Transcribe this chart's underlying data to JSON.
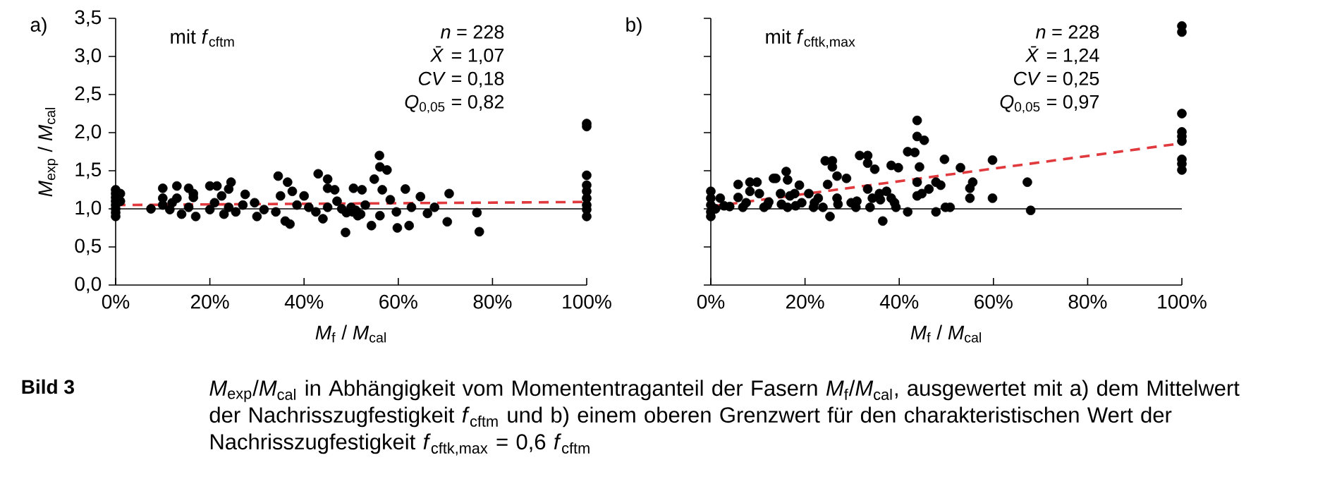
{
  "chart_data": [
    {
      "type": "scatter",
      "title": "a)",
      "subtitle": "mit *f*$_{cftm}$",
      "xlabel": "*M*$_{f}$ / *M*$_{cal}$",
      "ylabel": "*M*$_{exp}$ / *M*$_{cal}$",
      "annotations": [
        "*n* =  228",
        "*X̄* = 1,07",
        "*CV* = 0,18",
        "*Q*$_{0,05}$ = 0,82",
        "Bild 3",
        "*M*$_{exp}$/*M*$_{cal}$ in Abhängigkeit vom Momententraganteil der Fasern *M*$_{f}$/*M*$_{cal}$, ausgewertet mit a) dem Mittelwert der Nachrisszugfestigkeit *f*$_{cftm}$ und b) einem oberen Grenzwert für den charakteristischen Wert der Nachrisszugfestigkeit *f*$_{cftk,max}$ = 0,6 *f*$_{cftm}$"
      ],
      "xlim": [
        0,
        100
      ],
      "ylim": [
        0,
        3.5
      ],
      "xticks": [
        {
          "value": 0,
          "label": "0%"
        },
        {
          "value": 20,
          "label": "20%"
        },
        {
          "value": 40,
          "label": "40%"
        },
        {
          "value": 60,
          "label": "60%"
        },
        {
          "value": 80,
          "label": "80%"
        },
        {
          "value": 100,
          "label": "100%"
        }
      ],
      "yticks": [
        {
          "value": 0,
          "label": "0,0"
        },
        {
          "value": 0.5,
          "label": "0,5"
        },
        {
          "value": 1,
          "label": "1,0"
        },
        {
          "value": 1.5,
          "label": "1,5"
        },
        {
          "value": 2,
          "label": "2,0"
        },
        {
          "value": 2.5,
          "label": "2,5"
        },
        {
          "value": 3,
          "label": "3,0"
        },
        {
          "value": 3.5,
          "label": "3,5"
        }
      ],
      "ref_lines": [
        {
          "axis": "y",
          "value": 1,
          "color": "#000000"
        }
      ],
      "series": [
        {
          "color": "#000000",
          "x": [
            0,
            0,
            0,
            0,
            0,
            0,
            0,
            0,
            1,
            1,
            7.5,
            10,
            10,
            10,
            13,
            13,
            14,
            15.5,
            16.5,
            16.5,
            17,
            15.5,
            12,
            11.5,
            20,
            21.5,
            24.5,
            24,
            22.5,
            20,
            21,
            23,
            24,
            25.5,
            27.5,
            27,
            29.5,
            30,
            31.5,
            34,
            34.5,
            36.5,
            35,
            36,
            37,
            38.5,
            37.5,
            40,
            41,
            42.5,
            43,
            44,
            45,
            45,
            45,
            46.5,
            48.8,
            50.3,
            50.5,
            52.3,
            51.4,
            54.3,
            54.9,
            56,
            56.1,
            57.6,
            56.6,
            56.1,
            58.3,
            59.6,
            59.8,
            62.3,
            61.5,
            62.8,
            64.7,
            66.2,
            67.7,
            70.4,
            70.8,
            76.7,
            77.2,
            48,
            49,
            50,
            51,
            52,
            53,
            47,
            100,
            100,
            100,
            100,
            100,
            100,
            100,
            100,
            100
          ],
          "values": [
            1.25,
            1.2,
            1.15,
            1.1,
            1.05,
            1.0,
            0.95,
            0.9,
            1.2,
            1.1,
            1.0,
            1.27,
            1.14,
            1.05,
            1.3,
            1.14,
            0.93,
            1.27,
            1.15,
            1.2,
            0.9,
            1.02,
            1.08,
            0.99,
            1.3,
            1.3,
            1.35,
            1.26,
            1.17,
            0.99,
            1.08,
            0.93,
            1.02,
            0.96,
            1.19,
            1.05,
            1.08,
            0.9,
            0.99,
            0.96,
            1.43,
            1.35,
            1.17,
            0.84,
            0.8,
            1.05,
            1.23,
            1.17,
            1.02,
            0.96,
            1.46,
            0.87,
            1.02,
            1.39,
            1.27,
            1.25,
            0.69,
            0.96,
            1.27,
            1.25,
            0.91,
            0.78,
            1.39,
            1.7,
            1.55,
            1.51,
            1.25,
            0.91,
            1.12,
            0.96,
            0.75,
            0.78,
            1.26,
            1.02,
            1.16,
            0.94,
            1.02,
            0.83,
            1.2,
            0.95,
            0.7,
            1.0,
            0.95,
            1.02,
            0.98,
            0.93,
            1.05,
            1.1,
            2.12,
            2.08,
            1.44,
            1.31,
            1.23,
            1.14,
            1.05,
            0.99,
            0.9
          ]
        },
        {
          "type": "line",
          "color": "#e0393e",
          "line_style": "dashed",
          "x": [
            0,
            100
          ],
          "values": [
            1.05,
            1.09
          ]
        }
      ]
    },
    {
      "type": "scatter",
      "title": "b)",
      "subtitle": "mit *f*$_{cftk,max}$",
      "xlabel": "*M*$_{f}$ / *M*$_{cal}$",
      "annotations": [
        "*n* =  228",
        "*X̄* = 1,24",
        "*CV* = 0,25",
        "*Q*$_{0,05}$ = 0,97"
      ],
      "xlim": [
        0,
        100
      ],
      "ylim": [
        0,
        3.5
      ],
      "tick_labels": "x",
      "xticks": [
        {
          "value": 0,
          "label": "0%"
        },
        {
          "value": 20,
          "label": "20%"
        },
        {
          "value": 40,
          "label": "40%"
        },
        {
          "value": 60,
          "label": "60%"
        },
        {
          "value": 80,
          "label": "80%"
        },
        {
          "value": 100,
          "label": "100%"
        }
      ],
      "yticks": [
        {
          "value": 0,
          "label": null
        },
        {
          "value": 0.5,
          "label": null
        },
        {
          "value": 1,
          "label": null
        },
        {
          "value": 1.5,
          "label": null
        },
        {
          "value": 2,
          "label": null
        },
        {
          "value": 2.5,
          "label": null
        },
        {
          "value": 3,
          "label": null
        },
        {
          "value": 3.5,
          "label": null
        }
      ],
      "ref_lines": [
        {
          "axis": "y",
          "value": 1,
          "color": "#000000"
        }
      ],
      "series": [
        {
          "color": "#000000",
          "x": [
            0,
            0,
            0,
            0,
            0,
            1,
            2,
            2.8,
            5.8,
            5.8,
            6.8,
            8.3,
            8.3,
            9.8,
            10.3,
            11.3,
            12.3,
            13.3,
            13.8,
            14.8,
            16,
            16.3,
            16.3,
            16.8,
            17.8,
            18.8,
            19.3,
            20.8,
            21.8,
            22.8,
            24.3,
            25.8,
            25.8,
            24.8,
            25.3,
            23.8,
            26.8,
            26.8,
            28.8,
            29.8,
            30.8,
            31.6,
            33.3,
            33.3,
            33.3,
            34.8,
            34.3,
            33.8,
            35.8,
            36.5,
            37.3,
            38.3,
            38.3,
            39.3,
            39.8,
            41.8,
            41.8,
            43.3,
            43.8,
            43.8,
            45.3,
            44.3,
            43.8,
            43.8,
            44.8,
            46.3,
            47.8,
            47.8,
            48.8,
            49.6,
            49.8,
            50.8,
            53,
            55,
            55.6,
            55,
            59.8,
            59.8,
            67.2,
            67.9,
            4,
            7.5,
            12,
            15,
            18,
            22,
            27,
            31,
            36,
            39,
            100,
            100,
            100,
            100,
            100,
            100,
            100,
            100,
            100
          ],
          "values": [
            1.23,
            1.14,
            1.05,
            0.96,
            0.9,
            1.0,
            1.14,
            1.04,
            1.32,
            1.15,
            1.02,
            1.35,
            1.23,
            1.35,
            1.2,
            1.02,
            1.09,
            1.4,
            1.4,
            1.2,
            1.49,
            1.38,
            1.02,
            1.17,
            1.2,
            1.31,
            1.08,
            1.2,
            1.02,
            1.14,
            1.63,
            1.63,
            1.55,
            1.32,
            0.9,
            1.02,
            1.14,
            1.43,
            1.4,
            1.08,
            1.02,
            1.7,
            1.7,
            1.6,
            1.26,
            1.52,
            1.14,
            1.02,
            1.2,
            0.84,
            1.23,
            1.57,
            1.14,
            1.02,
            1.54,
            0.96,
            1.75,
            1.74,
            2.16,
            1.95,
            1.9,
            1.55,
            1.35,
            1.17,
            1.2,
            1.26,
            1.35,
            0.96,
            1.31,
            1.65,
            1.02,
            1.02,
            1.54,
            1.27,
            1.35,
            1.14,
            1.64,
            1.14,
            1.35,
            0.98,
            1.03,
            1.08,
            1.05,
            1.06,
            1.04,
            1.08,
            1.06,
            1.1,
            1.12,
            1.08,
            3.4,
            3.32,
            2.25,
            2.01,
            1.95,
            1.89,
            1.65,
            1.59,
            1.51
          ]
        },
        {
          "type": "line",
          "color": "#e0393e",
          "line_style": "dashed",
          "x": [
            0,
            100
          ],
          "values": [
            1.03,
            1.86
          ]
        }
      ]
    }
  ]
}
